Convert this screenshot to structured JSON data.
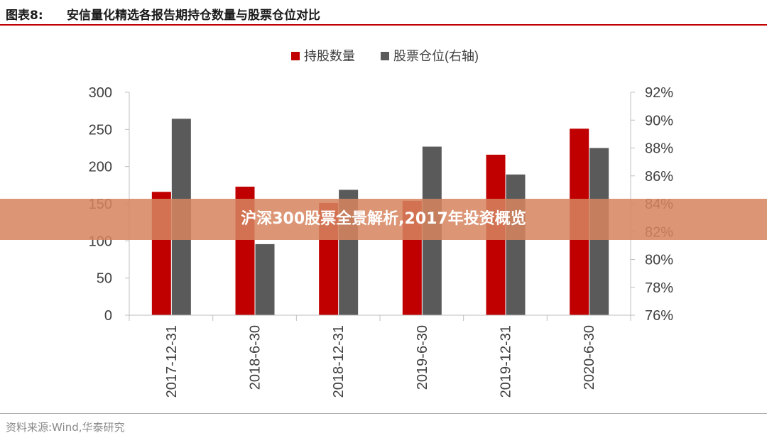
{
  "figure": {
    "label": "图表8:",
    "title": "安信量化精选各报告期持仓数量与股票仓位对比",
    "source": "资料来源:Wind,华泰研究"
  },
  "overlay": {
    "banner_text": "沪深300股票全景解析,2017年投资概览"
  },
  "colors": {
    "holdings": "#c00000",
    "position": "#5a5a5a",
    "axis": "#bfbfbf",
    "banner": "#d68560"
  },
  "chart_data": {
    "type": "bar",
    "title": "",
    "categories": [
      "2017-12-31",
      "2018-6-30",
      "2018-12-31",
      "2019-6-30",
      "2019-12-31",
      "2020-6-30"
    ],
    "series": [
      {
        "name": "持股数量",
        "axis": "left",
        "values": [
          166,
          173,
          151,
          154,
          216,
          251
        ]
      },
      {
        "name": "股票仓位(右轴)",
        "axis": "right",
        "values": [
          90.1,
          81.1,
          85.0,
          88.1,
          86.1,
          88.0
        ]
      }
    ],
    "y_left": {
      "range": [
        0,
        300
      ],
      "ticks": [
        "0",
        "50",
        "100",
        "150",
        "200",
        "250",
        "300"
      ]
    },
    "y_right": {
      "range": [
        76,
        92
      ],
      "ticks": [
        "76%",
        "78%",
        "80%",
        "82%",
        "84%",
        "86%",
        "88%",
        "90%",
        "92%"
      ]
    },
    "legend_position": "top-center",
    "grid": false
  }
}
